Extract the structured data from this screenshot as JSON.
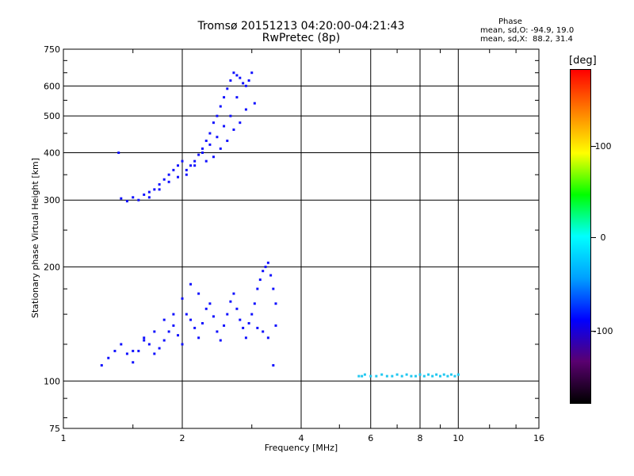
{
  "header": {
    "title_line1": "Tromsø 20151213 04:20:00-04:21:43",
    "title_line2": "RwPretec (8p)",
    "phase_heading": "Phase",
    "phase_stat_o": "mean, sd,O: -94.9, 19.0",
    "phase_stat_x": "mean, sd,X:  88.2, 31.4"
  },
  "colorbar": {
    "unit": "[deg]",
    "ticks": [
      "100",
      "0",
      "-100"
    ],
    "colors": [
      "#000000",
      "#5a0070",
      "#0000ff",
      "#00a0ff",
      "#00ffff",
      "#00ff00",
      "#ffff00",
      "#ff8000",
      "#ff0000"
    ]
  },
  "chart_data": {
    "type": "scatter",
    "title": "Tromsø 20151213 04:20:00-04:21:43",
    "subtitle": "RwPretec (8p)",
    "xlabel": "Frequency [MHz]",
    "ylabel": "Stationary phase Virtual Height [km]",
    "x_scale": "log",
    "y_scale": "log",
    "xlim": [
      1,
      16
    ],
    "ylim": [
      75,
      750
    ],
    "xticks": [
      "1",
      "2",
      "4",
      "6",
      "8",
      "10",
      "16"
    ],
    "yticks": [
      "75",
      "100",
      "200",
      "300",
      "400",
      "500",
      "600",
      "750"
    ],
    "grid": true,
    "color_scale": "Phase [deg]",
    "series": [
      {
        "values": [
          [
            1.38,
            400
          ],
          [
            1.4,
            303
          ],
          [
            1.45,
            298
          ],
          [
            1.5,
            305
          ],
          [
            1.55,
            300
          ],
          [
            1.6,
            310
          ],
          [
            1.65,
            315
          ],
          [
            1.7,
            320
          ],
          [
            1.75,
            330
          ],
          [
            1.8,
            340
          ],
          [
            1.85,
            350
          ],
          [
            1.9,
            360
          ],
          [
            1.95,
            370
          ],
          [
            2.0,
            380
          ],
          [
            2.05,
            360
          ],
          [
            2.1,
            370
          ],
          [
            2.15,
            380
          ],
          [
            2.2,
            395
          ],
          [
            2.25,
            410
          ],
          [
            2.3,
            430
          ],
          [
            2.35,
            450
          ],
          [
            2.4,
            480
          ],
          [
            2.45,
            500
          ],
          [
            2.5,
            530
          ],
          [
            2.55,
            560
          ],
          [
            2.6,
            590
          ],
          [
            2.65,
            620
          ],
          [
            2.7,
            650
          ],
          [
            2.75,
            640
          ],
          [
            2.8,
            630
          ],
          [
            2.85,
            610
          ],
          [
            2.9,
            600
          ],
          [
            2.95,
            620
          ],
          [
            3.0,
            650
          ],
          [
            2.6,
            430
          ],
          [
            2.7,
            460
          ],
          [
            2.8,
            480
          ],
          [
            2.5,
            410
          ],
          [
            2.4,
            390
          ],
          [
            2.3,
            380
          ],
          [
            3.05,
            540
          ],
          [
            2.9,
            520
          ],
          [
            2.75,
            560
          ],
          [
            2.65,
            500
          ],
          [
            2.55,
            470
          ],
          [
            2.45,
            440
          ],
          [
            2.35,
            420
          ],
          [
            2.25,
            400
          ],
          [
            2.15,
            370
          ],
          [
            2.05,
            350
          ],
          [
            1.95,
            345
          ],
          [
            1.85,
            335
          ],
          [
            1.75,
            320
          ],
          [
            1.65,
            305
          ]
        ]
      },
      {
        "values": [
          [
            1.25,
            110
          ],
          [
            1.3,
            115
          ],
          [
            1.35,
            120
          ],
          [
            1.4,
            125
          ],
          [
            1.45,
            118
          ],
          [
            1.5,
            112
          ],
          [
            1.55,
            120
          ],
          [
            1.6,
            130
          ],
          [
            1.65,
            125
          ],
          [
            1.7,
            118
          ],
          [
            1.75,
            122
          ],
          [
            1.8,
            128
          ],
          [
            1.85,
            135
          ],
          [
            1.9,
            140
          ],
          [
            1.95,
            132
          ],
          [
            2.0,
            125
          ],
          [
            2.05,
            150
          ],
          [
            2.1,
            145
          ],
          [
            2.15,
            138
          ],
          [
            2.2,
            130
          ],
          [
            2.25,
            142
          ],
          [
            2.3,
            155
          ],
          [
            2.35,
            160
          ],
          [
            2.4,
            148
          ],
          [
            2.45,
            135
          ],
          [
            2.5,
            128
          ],
          [
            2.55,
            140
          ],
          [
            2.6,
            150
          ],
          [
            2.65,
            162
          ],
          [
            2.7,
            170
          ],
          [
            2.75,
            155
          ],
          [
            2.8,
            145
          ],
          [
            2.85,
            138
          ],
          [
            2.9,
            130
          ],
          [
            2.95,
            142
          ],
          [
            3.0,
            150
          ],
          [
            3.05,
            160
          ],
          [
            3.1,
            175
          ],
          [
            3.15,
            185
          ],
          [
            3.2,
            195
          ],
          [
            3.25,
            200
          ],
          [
            3.3,
            205
          ],
          [
            3.35,
            190
          ],
          [
            3.4,
            175
          ],
          [
            3.45,
            160
          ],
          [
            3.45,
            140
          ],
          [
            3.4,
            110
          ],
          [
            3.3,
            130
          ],
          [
            3.2,
            135
          ],
          [
            3.1,
            138
          ],
          [
            2.0,
            165
          ],
          [
            2.1,
            180
          ],
          [
            2.2,
            170
          ],
          [
            1.9,
            150
          ],
          [
            1.8,
            145
          ],
          [
            1.7,
            135
          ],
          [
            1.6,
            128
          ],
          [
            1.5,
            120
          ]
        ]
      },
      {
        "values": [
          [
            5.6,
            103
          ],
          [
            5.7,
            103
          ],
          [
            5.8,
            104
          ],
          [
            6.0,
            103
          ],
          [
            6.2,
            103
          ],
          [
            6.4,
            104
          ],
          [
            6.6,
            103
          ],
          [
            6.8,
            103
          ],
          [
            7.0,
            104
          ],
          [
            7.2,
            103
          ],
          [
            7.4,
            104
          ],
          [
            7.6,
            103
          ],
          [
            7.8,
            103
          ],
          [
            8.0,
            104
          ],
          [
            8.2,
            103
          ],
          [
            8.4,
            104
          ],
          [
            8.6,
            103
          ],
          [
            8.8,
            104
          ],
          [
            9.0,
            103
          ],
          [
            9.2,
            104
          ],
          [
            9.4,
            103
          ],
          [
            9.6,
            104
          ],
          [
            9.8,
            103
          ],
          [
            10.0,
            104
          ]
        ]
      }
    ]
  }
}
